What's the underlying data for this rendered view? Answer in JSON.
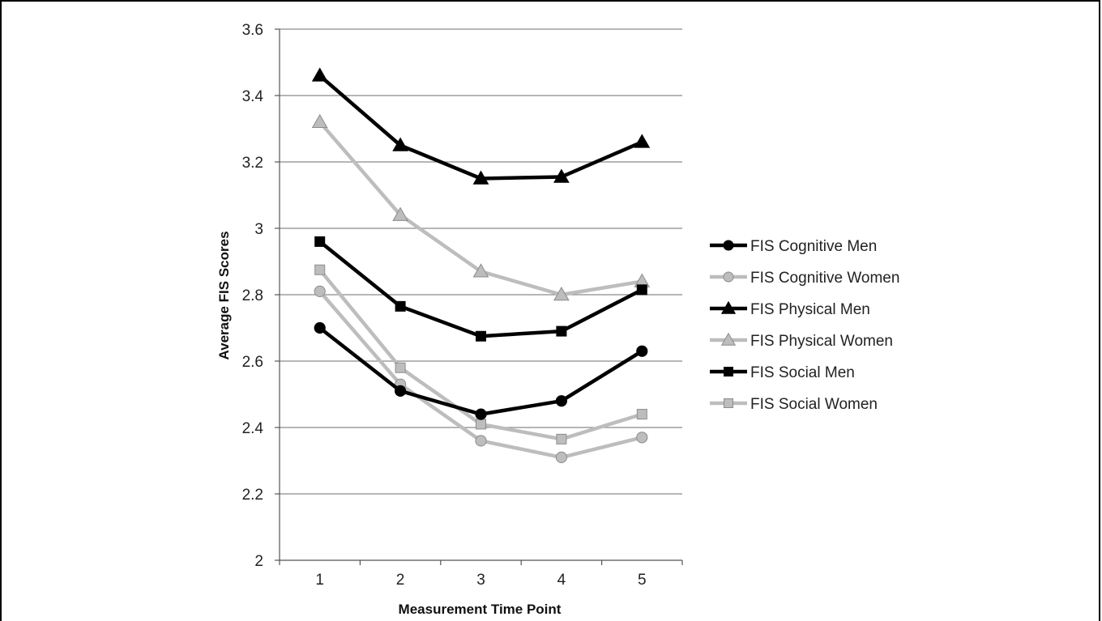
{
  "chart_data": {
    "type": "line",
    "xlabel": "Measurement Time Point",
    "ylabel": "Average FIS Scores",
    "categories": [
      "1",
      "2",
      "3",
      "4",
      "5"
    ],
    "ylim": [
      2,
      3.6
    ],
    "yticks": [
      "2",
      "2.2",
      "2.4",
      "2.6",
      "2.8",
      "3",
      "3.2",
      "3.4",
      "3.6"
    ],
    "grid": true,
    "legend_position": "right",
    "series": [
      {
        "name": "FIS Cognitive Men",
        "values": [
          2.7,
          2.51,
          2.44,
          2.48,
          2.63
        ],
        "color": "#000000",
        "marker": "circle"
      },
      {
        "name": "FIS Cognitive Women",
        "values": [
          2.81,
          2.53,
          2.36,
          2.31,
          2.37
        ],
        "color": "#bdbdbd",
        "marker": "circle"
      },
      {
        "name": "FIS Physical Men",
        "values": [
          3.46,
          3.25,
          3.15,
          3.155,
          3.26
        ],
        "color": "#000000",
        "marker": "triangle"
      },
      {
        "name": "FIS Physical Women",
        "values": [
          3.32,
          3.04,
          2.87,
          2.8,
          2.84
        ],
        "color": "#bdbdbd",
        "marker": "triangle"
      },
      {
        "name": "FIS Social Men",
        "values": [
          2.96,
          2.765,
          2.675,
          2.69,
          2.815
        ],
        "color": "#000000",
        "marker": "square"
      },
      {
        "name": "FIS Social Women",
        "values": [
          2.875,
          2.58,
          2.41,
          2.365,
          2.44
        ],
        "color": "#bdbdbd",
        "marker": "square"
      }
    ]
  }
}
